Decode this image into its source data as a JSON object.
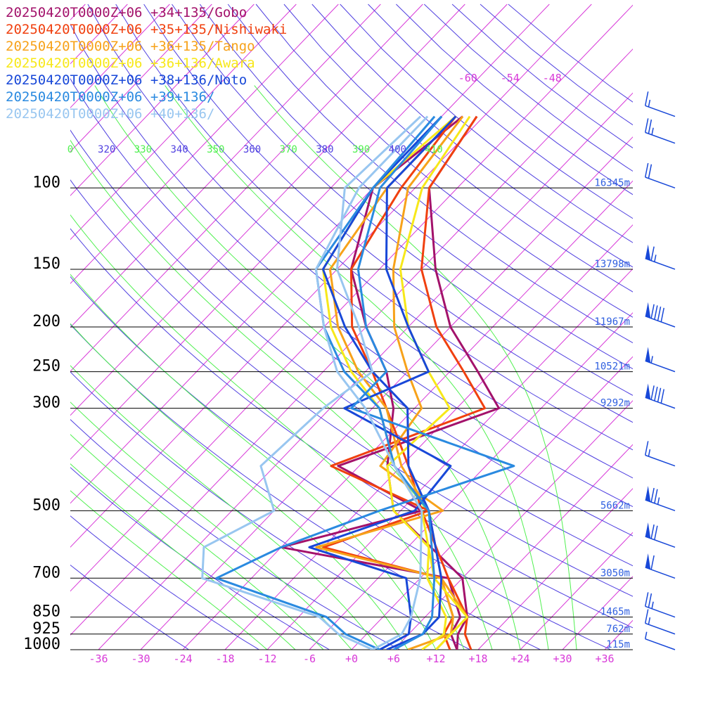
{
  "chart_data": {
    "type": "line",
    "title": "",
    "xlabel": "",
    "ylabel": "",
    "pressure_levels": [
      100,
      150,
      200,
      250,
      300,
      500,
      700,
      850,
      925,
      1000
    ],
    "ylim": [
      1000,
      60
    ],
    "xlim": [
      -40,
      40
    ],
    "x_ticks": [
      "-36",
      "-30",
      "-24",
      "-18",
      "-12",
      "-6",
      "+0",
      "+6",
      "+12",
      "+18",
      "+24",
      "+30",
      "+36"
    ],
    "x_tick_values": [
      -36,
      -30,
      -24,
      -18,
      -12,
      -6,
      0,
      6,
      12,
      18,
      24,
      30,
      36
    ],
    "upper_ticks": [
      "-60",
      "-54",
      "-48"
    ],
    "upper_tick_values": [
      -60,
      -54,
      -48
    ],
    "theta_labels": [
      "0",
      "320",
      "330",
      "340",
      "350",
      "360",
      "370",
      "380",
      "390",
      "400",
      "410"
    ],
    "heights": [
      {
        "p": 100,
        "label": "16345m"
      },
      {
        "p": 150,
        "label": "13798m"
      },
      {
        "p": 200,
        "label": "11967m"
      },
      {
        "p": 250,
        "label": "10521m"
      },
      {
        "p": 300,
        "label": "9292m"
      },
      {
        "p": 500,
        "label": "5662m"
      },
      {
        "p": 700,
        "label": "3050m"
      },
      {
        "p": 850,
        "label": "1465m"
      },
      {
        "p": 925,
        "label": "762m"
      },
      {
        "p": 1000,
        "label": "115m"
      }
    ],
    "series": [
      {
        "name": "20250420T0000Z+06 +34+135/Gobo",
        "color": "#a3126b",
        "temperature": [
          [
            1000,
            15
          ],
          [
            925,
            13
          ],
          [
            850,
            12
          ],
          [
            700,
            6
          ],
          [
            500,
            -13
          ],
          [
            400,
            -20
          ],
          [
            300,
            -27
          ],
          [
            250,
            -33
          ],
          [
            200,
            -42
          ],
          [
            150,
            -52
          ],
          [
            100,
            -60
          ],
          [
            70,
            -57
          ]
        ],
        "dewpoint": [
          [
            1000,
            15
          ],
          [
            925,
            12
          ],
          [
            850,
            11
          ],
          [
            700,
            4
          ],
          [
            600,
            -24
          ],
          [
            500,
            -9
          ],
          [
            400,
            -27
          ],
          [
            300,
            -12
          ],
          [
            250,
            -20
          ],
          [
            200,
            -30
          ],
          [
            150,
            -40
          ],
          [
            100,
            -52
          ],
          [
            70,
            -55
          ]
        ]
      },
      {
        "name": "20250420T0000Z+06 +35+135/Nishiwaki",
        "color": "#f0400f",
        "temperature": [
          [
            1000,
            17
          ],
          [
            925,
            14
          ],
          [
            850,
            12
          ],
          [
            700,
            4
          ],
          [
            500,
            -9
          ],
          [
            400,
            -17
          ],
          [
            300,
            -28
          ],
          [
            250,
            -35
          ],
          [
            200,
            -44
          ],
          [
            150,
            -52
          ],
          [
            100,
            -56
          ],
          [
            70,
            -58
          ]
        ],
        "dewpoint": [
          [
            1000,
            14
          ],
          [
            925,
            11
          ],
          [
            850,
            10
          ],
          [
            700,
            3
          ],
          [
            600,
            -18
          ],
          [
            500,
            -8
          ],
          [
            400,
            -28
          ],
          [
            300,
            -14
          ],
          [
            250,
            -22
          ],
          [
            200,
            -32
          ],
          [
            150,
            -42
          ],
          [
            100,
            -52
          ],
          [
            70,
            -55
          ]
        ]
      },
      {
        "name": "20250420T0000Z+06 +36+135/Tango",
        "color": "#f7a21a",
        "temperature": [
          [
            1000,
            12
          ],
          [
            925,
            12
          ],
          [
            850,
            12
          ],
          [
            700,
            3
          ],
          [
            500,
            -8
          ],
          [
            400,
            -18
          ],
          [
            300,
            -28
          ],
          [
            250,
            -37
          ],
          [
            200,
            -46
          ],
          [
            150,
            -55
          ],
          [
            100,
            -58
          ],
          [
            70,
            -58
          ]
        ],
        "dewpoint": [
          [
            1000,
            8
          ],
          [
            925,
            12
          ],
          [
            850,
            10
          ],
          [
            700,
            3
          ],
          [
            600,
            -19
          ],
          [
            500,
            -6
          ],
          [
            400,
            -21
          ],
          [
            300,
            -23
          ],
          [
            250,
            -30
          ],
          [
            200,
            -38
          ],
          [
            150,
            -46
          ],
          [
            100,
            -55
          ],
          [
            70,
            -57
          ]
        ]
      },
      {
        "name": "20250420T0000Z+06 +36+136/Awara",
        "color": "#f7e81a",
        "temperature": [
          [
            1000,
            12
          ],
          [
            925,
            12
          ],
          [
            850,
            12
          ],
          [
            700,
            2
          ],
          [
            500,
            -9
          ],
          [
            400,
            -19
          ],
          [
            300,
            -29
          ],
          [
            250,
            -38
          ],
          [
            200,
            -47
          ],
          [
            150,
            -56
          ],
          [
            100,
            -60
          ],
          [
            70,
            -58
          ]
        ],
        "dewpoint": [
          [
            1000,
            10
          ],
          [
            925,
            11
          ],
          [
            850,
            9
          ],
          [
            700,
            1
          ],
          [
            600,
            -3
          ],
          [
            500,
            -13
          ],
          [
            400,
            -20
          ],
          [
            300,
            -19
          ],
          [
            250,
            -27
          ],
          [
            200,
            -36
          ],
          [
            150,
            -45
          ],
          [
            100,
            -53
          ],
          [
            70,
            -56
          ]
        ]
      },
      {
        "name": "20250420T0000Z+06 +38+136/Noto",
        "color": "#1848d8",
        "temperature": [
          [
            1000,
            5
          ],
          [
            925,
            8
          ],
          [
            850,
            8
          ],
          [
            700,
            3
          ],
          [
            500,
            -8
          ],
          [
            400,
            -17
          ],
          [
            300,
            -25
          ],
          [
            250,
            -35
          ],
          [
            200,
            -45
          ],
          [
            150,
            -56
          ],
          [
            100,
            -60
          ],
          [
            70,
            -60
          ]
        ],
        "dewpoint": [
          [
            1000,
            4
          ],
          [
            925,
            6
          ],
          [
            850,
            4
          ],
          [
            700,
            -2
          ],
          [
            600,
            -20
          ],
          [
            500,
            -10
          ],
          [
            400,
            -11
          ],
          [
            300,
            -34
          ],
          [
            250,
            -27
          ],
          [
            200,
            -36
          ],
          [
            150,
            -47
          ],
          [
            100,
            -58
          ],
          [
            70,
            -58
          ]
        ]
      },
      {
        "name": "20250420T0000Z+06 +39+136/",
        "color": "#2a8ae0",
        "temperature": [
          [
            1000,
            6
          ],
          [
            925,
            8
          ],
          [
            850,
            7
          ],
          [
            700,
            2
          ],
          [
            500,
            -8
          ],
          [
            400,
            -19
          ],
          [
            300,
            -29
          ],
          [
            250,
            -39
          ],
          [
            200,
            -48
          ],
          [
            150,
            -57
          ],
          [
            100,
            -60
          ],
          [
            70,
            -61
          ]
        ],
        "dewpoint": [
          [
            1000,
            4
          ],
          [
            925,
            -3
          ],
          [
            850,
            -8
          ],
          [
            700,
            -29
          ],
          [
            600,
            -24
          ],
          [
            500,
            -15
          ],
          [
            400,
            -2
          ],
          [
            300,
            -33
          ],
          [
            250,
            -33
          ],
          [
            200,
            -42
          ],
          [
            150,
            -51
          ],
          [
            100,
            -59
          ],
          [
            70,
            -60
          ]
        ]
      },
      {
        "name": "20250420T0000Z+06 +40+136/",
        "color": "#98c6f0",
        "temperature": [
          [
            1000,
            3
          ],
          [
            925,
            5
          ],
          [
            850,
            4
          ],
          [
            700,
            0
          ],
          [
            500,
            -9
          ],
          [
            400,
            -19
          ],
          [
            300,
            -31
          ],
          [
            250,
            -40
          ],
          [
            200,
            -48
          ],
          [
            150,
            -57
          ],
          [
            100,
            -62
          ],
          [
            70,
            -62
          ]
        ],
        "dewpoint": [
          [
            1000,
            3
          ],
          [
            925,
            -4
          ],
          [
            850,
            -9
          ],
          [
            700,
            -31
          ],
          [
            600,
            -35
          ],
          [
            500,
            -30
          ],
          [
            400,
            -38
          ],
          [
            300,
            -37
          ],
          [
            250,
            -35
          ],
          [
            200,
            -43
          ],
          [
            150,
            -54
          ],
          [
            100,
            -64
          ],
          [
            70,
            -63
          ]
        ]
      }
    ],
    "wind_barbs": [
      {
        "p": 70,
        "dir": 280,
        "kt": 15
      },
      {
        "p": 80,
        "dir": 280,
        "kt": 25
      },
      {
        "p": 100,
        "dir": 280,
        "kt": 20
      },
      {
        "p": 150,
        "dir": 270,
        "kt": 65
      },
      {
        "p": 200,
        "dir": 260,
        "kt": 90
      },
      {
        "p": 250,
        "dir": 250,
        "kt": 55
      },
      {
        "p": 300,
        "dir": 255,
        "kt": 90
      },
      {
        "p": 400,
        "dir": 260,
        "kt": 15
      },
      {
        "p": 500,
        "dir": 260,
        "kt": 75
      },
      {
        "p": 600,
        "dir": 260,
        "kt": 70
      },
      {
        "p": 700,
        "dir": 265,
        "kt": 60
      },
      {
        "p": 850,
        "dir": 250,
        "kt": 25
      },
      {
        "p": 925,
        "dir": 210,
        "kt": 15
      },
      {
        "p": 1000,
        "dir": 190,
        "kt": 5
      }
    ],
    "colors": {
      "isobar": "#000000",
      "isotherm": "#d838d8",
      "dry_adiabat": "#5040e0",
      "moist_adiabat": "#50f050",
      "height_label": "#3060e0",
      "tick_label": "#d838d8",
      "wind": "#1848d8"
    }
  }
}
